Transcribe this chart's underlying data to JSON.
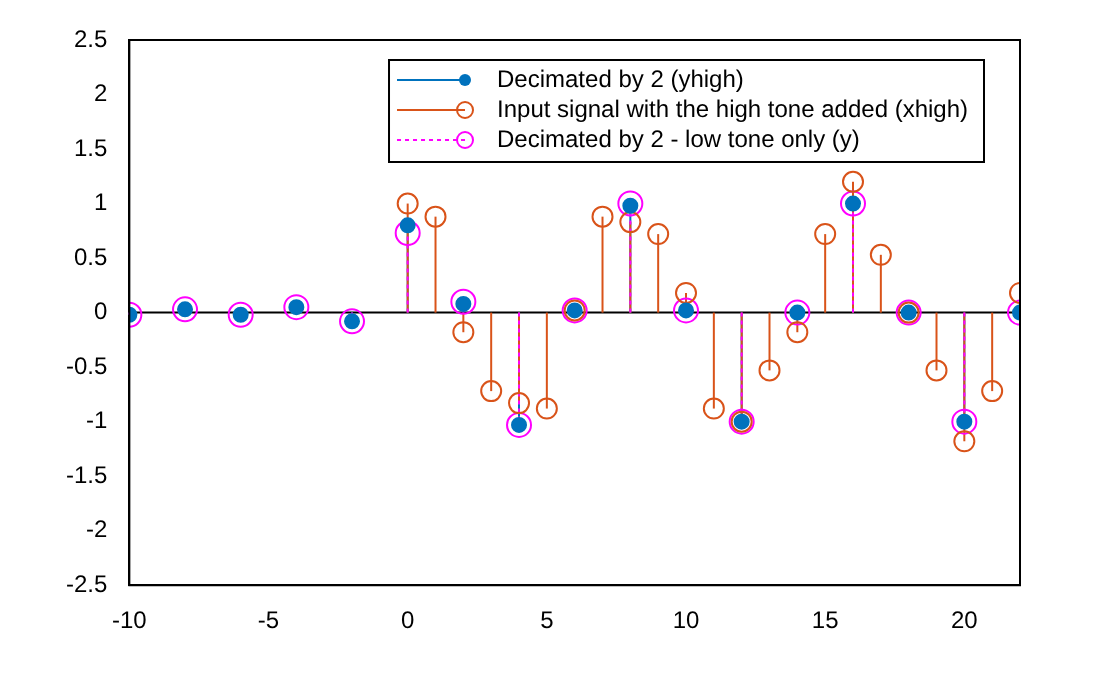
{
  "chart_data": {
    "type": "lollipop",
    "xlim": [
      -10,
      22
    ],
    "xticks": [
      -10,
      -5,
      0,
      5,
      10,
      15,
      20
    ],
    "ylim": [
      -2.5,
      2.5
    ],
    "yticks": [
      -2.5,
      -2,
      -1.5,
      -1,
      -0.5,
      0,
      0.5,
      1,
      1.5,
      2,
      2.5
    ],
    "legend": "top right",
    "grid": false,
    "ref_lines": [
      {
        "axis": "y",
        "value": 0,
        "color": "#000000"
      }
    ],
    "series": [
      {
        "name": "Decimated by 2 (yhigh)",
        "color": "#0072bd",
        "marker": "circle",
        "line_style": "solid",
        "x": [
          -10,
          -8,
          -6,
          -4,
          -2,
          0,
          2,
          4,
          6,
          8,
          10,
          12,
          14,
          16,
          18,
          20,
          22
        ],
        "values": [
          -0.02,
          0.03,
          -0.02,
          0.05,
          -0.08,
          0.8,
          0.08,
          -1.03,
          0.02,
          0.98,
          0.02,
          -1,
          0,
          1,
          0,
          -1,
          0
        ]
      },
      {
        "name": "Input signal with the high tone added (xhigh)",
        "color": "#d95319",
        "marker": "circle",
        "line_style": "solid",
        "x": [
          0,
          1,
          2,
          3,
          4,
          5,
          6,
          7,
          8,
          9,
          10,
          11,
          12,
          13,
          14,
          15,
          16,
          17,
          18,
          19,
          20,
          21,
          22
        ],
        "values": [
          1,
          0.88,
          -0.18,
          -0.72,
          -0.83,
          -0.88,
          0.02,
          0.88,
          0.83,
          0.72,
          0.18,
          -0.88,
          -1,
          -0.53,
          -0.18,
          0.72,
          1.2,
          0.53,
          0,
          -0.53,
          -1.18,
          -0.72,
          0.18
        ]
      },
      {
        "name": "Decimated by 2 - low tone only (y)",
        "color": "#ff00ff",
        "marker": "circle",
        "line_style": "dotted",
        "x": [
          -10,
          -8,
          -6,
          -4,
          -2,
          0,
          2,
          4,
          6,
          8,
          10,
          12,
          14,
          16,
          18,
          20,
          22
        ],
        "values": [
          -0.02,
          0.03,
          -0.02,
          0.05,
          -0.08,
          0.73,
          0.1,
          -1.03,
          0.02,
          1,
          0.02,
          -1,
          0,
          1,
          0,
          -1,
          0
        ]
      }
    ]
  }
}
